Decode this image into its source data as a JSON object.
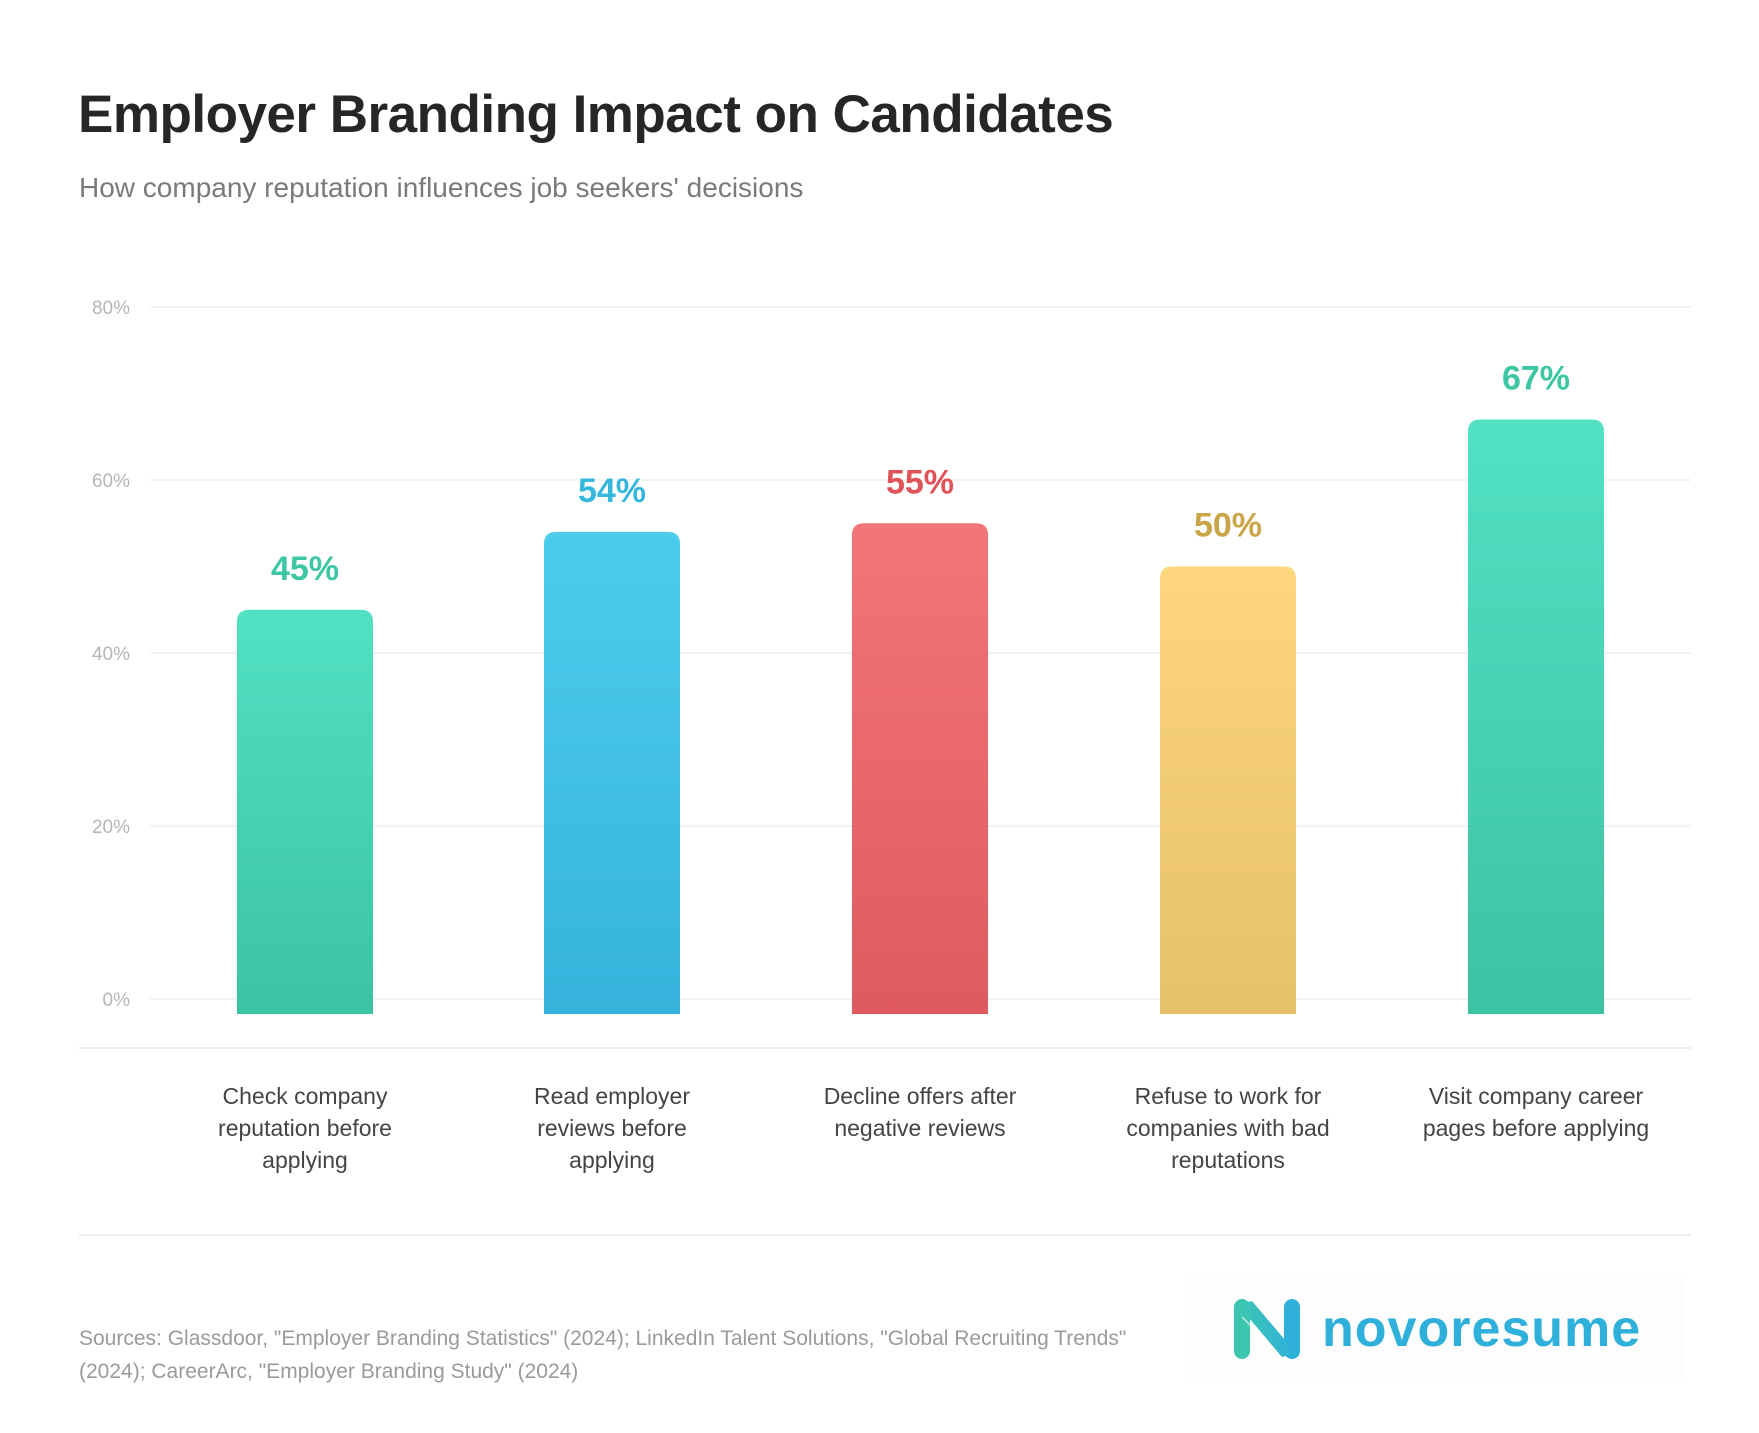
{
  "header": {
    "title": "Employer Branding Impact on Candidates",
    "subtitle": "How company reputation influences job seekers' decisions"
  },
  "chart_data": {
    "type": "bar",
    "title": "Employer Branding Impact on Candidates",
    "subtitle": "How company reputation influences job seekers' decisions",
    "categories": [
      "Check company reputation before applying",
      "Read employer reviews before applying",
      "Decline offers after negative reviews",
      "Refuse to work for companies with bad reputations",
      "Visit company career pages before applying"
    ],
    "values": [
      45,
      54,
      55,
      50,
      67
    ],
    "data_labels": [
      "45%",
      "54%",
      "55%",
      "50%",
      "67%"
    ],
    "colors": [
      {
        "top": "#52e1c3",
        "bottom": "#3bc3a3",
        "label": "#3cc6a4"
      },
      {
        "top": "#4dcdec",
        "bottom": "#35b3dc",
        "label": "#36b7df"
      },
      {
        "top": "#f27678",
        "bottom": "#df5a5e",
        "label": "#df5257"
      },
      {
        "top": "#fdd67e",
        "bottom": "#e6c06a",
        "label": "#c9a547"
      },
      {
        "top": "#52e1c3",
        "bottom": "#3bc3a3",
        "label": "#3cc6a4"
      }
    ],
    "ylim": [
      0,
      80
    ],
    "yticks": [
      0,
      20,
      40,
      60,
      80
    ],
    "ytick_labels": [
      "0%",
      "20%",
      "40%",
      "60%",
      "80%"
    ],
    "xlabel": "",
    "ylabel": "",
    "grid": true,
    "legend": "none"
  },
  "categories_wrapped": [
    [
      "Check company",
      "reputation before",
      "applying"
    ],
    [
      "Read employer",
      "reviews before",
      "applying"
    ],
    [
      "Decline offers after",
      "negative reviews"
    ],
    [
      "Refuse to work for",
      "companies with bad",
      "reputations"
    ],
    [
      "Visit company career",
      "pages before applying"
    ]
  ],
  "footer": {
    "sources": "Sources: Glassdoor, \"Employer Branding Statistics\" (2024); LinkedIn Talent Solutions, \"Global Recruiting Trends\" (2024); CareerArc, \"Employer Branding Study\" (2024)",
    "logo_text": "novoresume"
  }
}
